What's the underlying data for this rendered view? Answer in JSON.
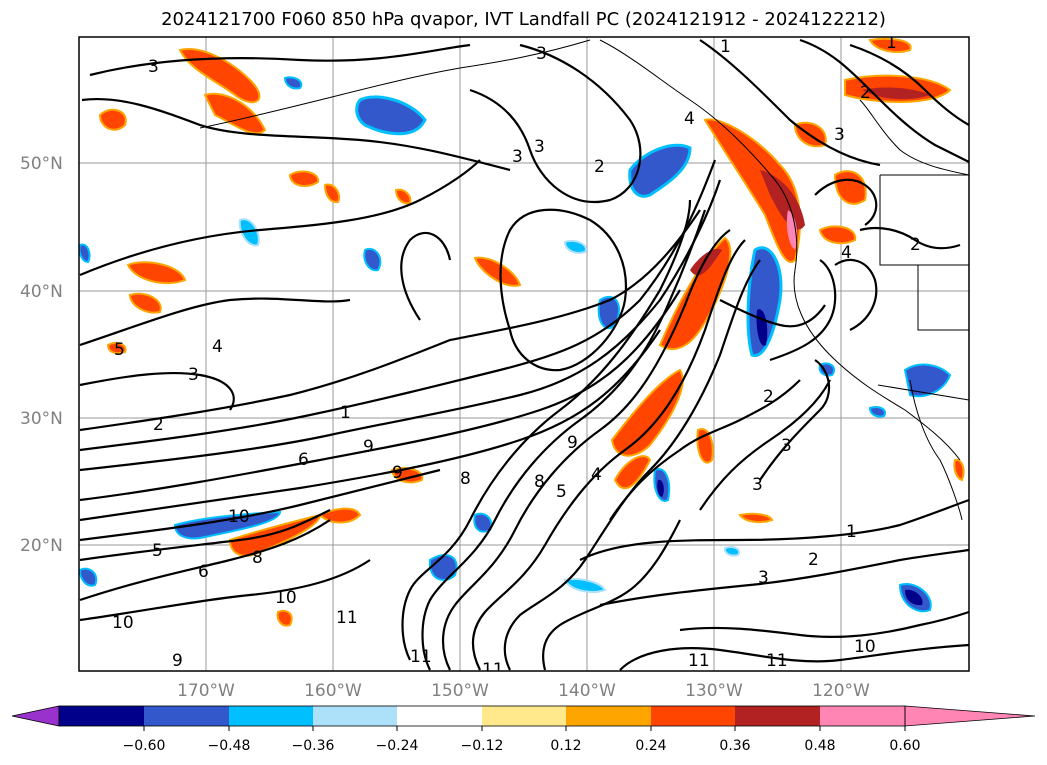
{
  "title": "2024121700 F060 850 hPa qvapor, IVT Landfall PC (2024121912 - 2024122212)",
  "map": {
    "lon_labels": [
      "170°W",
      "160°W",
      "150°W",
      "140°W",
      "130°W",
      "120°W"
    ],
    "lat_labels": [
      "50°N",
      "40°N",
      "30°N",
      "20°N"
    ],
    "contour_labels": [
      "3",
      "1",
      "3",
      "3",
      "2",
      "3",
      "1",
      "4",
      "5",
      "3",
      "2",
      "2",
      "1",
      "6",
      "9",
      "8",
      "10",
      "5",
      "6",
      "8",
      "9",
      "10",
      "11",
      "11",
      "10",
      "9",
      "11",
      "11",
      "11",
      "10",
      "9",
      "8",
      "5",
      "4",
      "4",
      "2",
      "3",
      "3",
      "1",
      "2",
      "3",
      "3",
      "4",
      "2"
    ]
  },
  "colorbar": {
    "tick_labels": [
      "−0.60",
      "−0.48",
      "−0.36",
      "−0.24",
      "−0.12",
      "0.12",
      "0.24",
      "0.36",
      "0.48",
      "0.60"
    ],
    "colors": [
      "#9932CC",
      "#00008B",
      "#3358CC",
      "#00BFFF",
      "#ADE1FA",
      "#FFFFFF",
      "#FFE98C",
      "#FFA500",
      "#FF4500",
      "#B22222",
      "#FF85B5"
    ]
  }
}
